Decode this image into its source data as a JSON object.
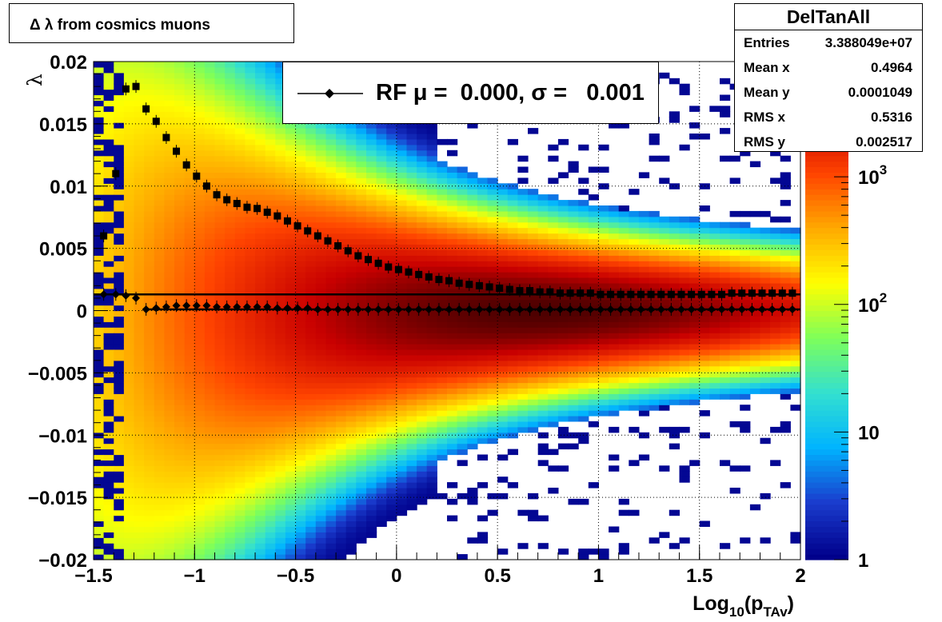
{
  "title": "Δ λ from cosmics muons",
  "stats": {
    "name": "DelTanAll",
    "rows": [
      {
        "key": "Entries",
        "value": "3.388049e+07"
      },
      {
        "key": "Mean x",
        "value": "0.4964"
      },
      {
        "key": "Mean y",
        "value": "0.0001049"
      },
      {
        "key": "RMS x",
        "value": "0.5316"
      },
      {
        "key": "RMS y",
        "value": "0.002517"
      }
    ]
  },
  "legend": {
    "entry": "RF μ =  0.000, σ =   0.001"
  },
  "colors": {
    "profile_markers": "#000000",
    "colormap": [
      "#00008b",
      "#1a3ccd",
      "#00b4ff",
      "#33e0d0",
      "#7dff5a",
      "#ffff00",
      "#ffaa00",
      "#ff4400",
      "#c80000",
      "#3c0000"
    ]
  },
  "chart_data": {
    "type": "heatmap",
    "xlabel_main": "Log",
    "xlabel_sub": "10",
    "xlabel_open": "(p",
    "xlabel_sub2": "TAv",
    "xlabel_close": ")",
    "ylabel": "λ",
    "xlim": [
      -1.5,
      2
    ],
    "ylim": [
      -0.02,
      0.02
    ],
    "x_ticks": [
      "−1.5",
      "−1",
      "−0.5",
      "0",
      "0.5",
      "1",
      "1.5",
      "2"
    ],
    "x_tick_values": [
      -1.5,
      -1,
      -0.5,
      0,
      0.5,
      1,
      1.5,
      2
    ],
    "y_ticks": [
      "0.02",
      "0.015",
      "0.01",
      "0.005",
      "0",
      "−0.005",
      "−0.01",
      "−0.015",
      "−0.02"
    ],
    "y_tick_values": [
      0.02,
      0.015,
      0.01,
      0.005,
      0,
      -0.005,
      -0.01,
      -0.015,
      -0.02
    ],
    "grid": true,
    "z_scale": "log",
    "colorbar_labels": [
      {
        "base": "10",
        "exp": "3",
        "value": 1000
      },
      {
        "base": "10",
        "exp": "2",
        "value": 100
      },
      {
        "base": "10",
        "exp": "",
        "value": 10
      },
      {
        "base": "1",
        "exp": "",
        "value": 1
      }
    ],
    "zlim": [
      1,
      8000
    ],
    "series": [
      {
        "kind": "rms-profile",
        "marker": "square",
        "x": [
          -1.45,
          -1.39,
          -1.34,
          -1.29,
          -1.24,
          -1.19,
          -1.14,
          -1.09,
          -1.04,
          -0.99,
          -0.94,
          -0.89,
          -0.84,
          -0.79,
          -0.74,
          -0.69,
          -0.64,
          -0.59,
          -0.54,
          -0.49,
          -0.44,
          -0.39,
          -0.34,
          -0.29,
          -0.24,
          -0.19,
          -0.14,
          -0.09,
          -0.04,
          0.01,
          0.06,
          0.11,
          0.16,
          0.21,
          0.26,
          0.31,
          0.36,
          0.41,
          0.46,
          0.51,
          0.56,
          0.61,
          0.66,
          0.71,
          0.76,
          0.81,
          0.86,
          0.91,
          0.96,
          1.01,
          1.06,
          1.11,
          1.16,
          1.21,
          1.26,
          1.31,
          1.36,
          1.41,
          1.46,
          1.51,
          1.56,
          1.61,
          1.66,
          1.71,
          1.76,
          1.81,
          1.86,
          1.91,
          1.96
        ],
        "y": [
          0.006,
          0.011,
          0.0178,
          0.018,
          0.0162,
          0.0152,
          0.0139,
          0.0128,
          0.0117,
          0.0108,
          0.01,
          0.0093,
          0.0089,
          0.0086,
          0.0083,
          0.0082,
          0.0079,
          0.0076,
          0.0072,
          0.0068,
          0.0064,
          0.006,
          0.0056,
          0.0052,
          0.0048,
          0.0044,
          0.0041,
          0.0038,
          0.0035,
          0.0033,
          0.0031,
          0.0029,
          0.0027,
          0.0025,
          0.0024,
          0.0022,
          0.0021,
          0.002,
          0.0019,
          0.0018,
          0.0017,
          0.0016,
          0.0016,
          0.0015,
          0.0015,
          0.0014,
          0.0014,
          0.0014,
          0.0014,
          0.0013,
          0.0013,
          0.0013,
          0.0013,
          0.0013,
          0.0013,
          0.0013,
          0.0013,
          0.0013,
          0.0013,
          0.0013,
          0.0013,
          0.0013,
          0.0014,
          0.0014,
          0.0014,
          0.0014,
          0.0014,
          0.0014,
          0.0014
        ]
      },
      {
        "kind": "mean-profile",
        "marker": "diamond",
        "x": [
          -1.45,
          -1.39,
          -1.34,
          -1.29,
          -1.24,
          -1.19,
          -1.14,
          -1.09,
          -1.04,
          -0.99,
          -0.94,
          -0.89,
          -0.84,
          -0.79,
          -0.74,
          -0.69,
          -0.64,
          -0.59,
          -0.54,
          -0.49,
          -0.44,
          -0.39,
          -0.34,
          -0.29,
          -0.24,
          -0.19,
          -0.14,
          -0.09,
          -0.04,
          0.01,
          0.06,
          0.11,
          0.16,
          0.21,
          0.26,
          0.31,
          0.36,
          0.41,
          0.46,
          0.51,
          0.56,
          0.61,
          0.66,
          0.71,
          0.76,
          0.81,
          0.86,
          0.91,
          0.96,
          1.01,
          1.06,
          1.11,
          1.16,
          1.21,
          1.26,
          1.31,
          1.36,
          1.41,
          1.46,
          1.51,
          1.56,
          1.61,
          1.66,
          1.71,
          1.76,
          1.81,
          1.86,
          1.91,
          1.96
        ],
        "y": [
          0.0013,
          0.0013,
          0.0012,
          0.001,
          0.0001,
          0.0002,
          0.0003,
          0.0004,
          0.0004,
          0.0004,
          0.0004,
          0.0003,
          0.0003,
          0.0003,
          0.0003,
          0.0003,
          0.0003,
          0.0002,
          0.0002,
          0.0002,
          0.0002,
          0.0001,
          0.0001,
          0.0001,
          0.0001,
          0.0001,
          0.0001,
          0.0001,
          0.0001,
          0.0001,
          0.0001,
          0.0001,
          0.0001,
          0.0001,
          0.0001,
          0.0001,
          0.0001,
          0.0001,
          0.0001,
          0.0001,
          0.0001,
          0.0001,
          0.0001,
          0.0001,
          0.0001,
          0.0001,
          0.0001,
          0.0001,
          0.0001,
          0.0001,
          0.0001,
          0.0001,
          0.0001,
          0.0001,
          0.0001,
          0.0001,
          0.0001,
          0.0001,
          0.0001,
          0.0001,
          0.0001,
          0.0001,
          0.0001,
          0.0001,
          0.0001,
          0.0001,
          0.0001,
          0.0001,
          0.0001
        ]
      }
    ],
    "fit_lines": [
      {
        "y": 0.0013,
        "x_from": -1.5,
        "x_to": 2
      },
      {
        "y": 0.0001,
        "x_from": -1.25,
        "x_to": 2
      }
    ]
  }
}
